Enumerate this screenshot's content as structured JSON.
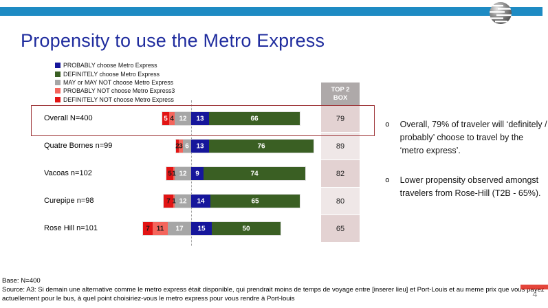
{
  "slide": {
    "title": "Propensity to use the Metro Express",
    "page_number": "4",
    "colors": {
      "top_bar": "#1E8BC3",
      "title_text": "#1F2C9E",
      "highlight_border": "#9E3538",
      "dotted_guide": "#949494"
    }
  },
  "legend": {
    "items": [
      {
        "label": "PROBABLY choose Metro Express",
        "color": "#16169B"
      },
      {
        "label": "DEFINITELY choose Metro Express",
        "color": "#3A5F23"
      },
      {
        "label": "MAY or MAY NOT choose Metro Express",
        "color": "#A6A6A6"
      },
      {
        "label": "PROBABLY NOT choose Metro Express3",
        "color": "#F4655C"
      },
      {
        "label": "DEFINITELY NOT choose Metro Express",
        "color": "#E21414"
      }
    ]
  },
  "chart_data": {
    "type": "bar",
    "variant": "horizontal-diverging-stacked",
    "unit": "percent",
    "title": "Propensity to use the Metro Express",
    "series": [
      "DEFINITELY NOT choose Metro Express",
      "PROBABLY NOT choose Metro Express",
      "MAY or MAY NOT choose Metro Express",
      "PROBABLY choose Metro Express",
      "DEFINITELY choose Metro Express"
    ],
    "series_colors": [
      "#E21414",
      "#F4655C",
      "#A6A6A6",
      "#16169B",
      "#3A5F23"
    ],
    "categories": [
      "Overall N=400",
      "Quatre Bornes n=99",
      "Vacoas n=102",
      "Curepipe n=98",
      "Rose Hill n=101"
    ],
    "rows": [
      {
        "label": "Overall N=400",
        "values": [
          5,
          4,
          12,
          13,
          66
        ],
        "value_label_colors": [
          "#FFFFFF",
          "#1a1a1a",
          "#FFFFFF",
          "#FFFFFF",
          "#FFFFFF"
        ],
        "top2box": 79,
        "highlighted": true
      },
      {
        "label": "Quatre Bornes n=99",
        "values": [
          2,
          3,
          6,
          13,
          76
        ],
        "value_label_colors": [
          "#1a1a1a",
          "#1a1a1a",
          "#FFFFFF",
          "#FFFFFF",
          "#FFFFFF"
        ],
        "top2box": 89,
        "highlighted": false
      },
      {
        "label": "Vacoas n=102",
        "values": [
          5,
          1,
          12,
          9,
          74
        ],
        "value_label_colors": [
          "#1a1a1a",
          "#1a1a1a",
          "#FFFFFF",
          "#FFFFFF",
          "#FFFFFF"
        ],
        "top2box": 82,
        "highlighted": false
      },
      {
        "label": "Curepipe n=98",
        "values": [
          7,
          1,
          12,
          14,
          65
        ],
        "value_label_colors": [
          "#1a1a1a",
          "#1a1a1a",
          "#FFFFFF",
          "#FFFFFF",
          "#FFFFFF"
        ],
        "top2box": 80,
        "highlighted": false
      },
      {
        "label": "Rose Hill n=101",
        "values": [
          7,
          11,
          17,
          15,
          50
        ],
        "value_label_colors": [
          "#1a1a1a",
          "#1a1a1a",
          "#FFFFFF",
          "#FFFFFF",
          "#FFFFFF"
        ],
        "top2box": 65,
        "highlighted": false
      }
    ],
    "top2box": {
      "header": "TOP 2 BOX",
      "values": [
        79,
        89,
        82,
        80,
        65
      ],
      "header_bg": "#AEA9A9",
      "cell_colors": [
        "#E3D2D2",
        "#EFE7E7",
        "#E3D2D2",
        "#EFE7E7",
        "#E3D2D2"
      ]
    },
    "axis_note": "segments sum to ~100% per row; positive side (PROBABLY + DEFINITELY) aligned right of dotted guide"
  },
  "bullets": {
    "marker": "o",
    "items": [
      "Overall, 79% of traveler will ‘definitely / probably’ choose to travel by the ‘metro express’.",
      "Lower propensity observed amongst travelers from Rose-Hill (T2B - 65%)."
    ]
  },
  "footer": {
    "base": "Base: N=400",
    "source": "Source: A3: Si demain une alternative comme le metro express était disponible, qui prendrait moins de temps de voyage entre [inserer lieu] et Port-Louis et au meme prix que vous payez actuellement pour le bus, à quel point choisiriez-vous le metro express pour vous rendre à Port-louis"
  }
}
